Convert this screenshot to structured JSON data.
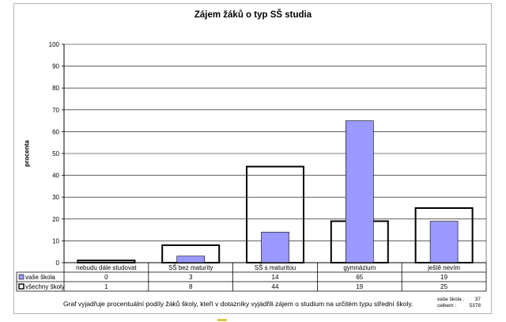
{
  "chart_data": {
    "type": "bar",
    "title": "Zájem žáků o typ SŠ studia",
    "ylabel": "procenta",
    "ylim": [
      0,
      100
    ],
    "yticks": [
      0,
      10,
      20,
      30,
      40,
      50,
      60,
      70,
      80,
      90,
      100
    ],
    "grid": true,
    "categories": [
      "nebudu dále studovat",
      "SŠ bez maturity",
      "SŠ s maturitou",
      "gymnázium",
      "ještě nevím"
    ],
    "series": [
      {
        "name": "vaše škola",
        "values": [
          0,
          3,
          14,
          65,
          19
        ],
        "color": "#9999ff",
        "style": "filled"
      },
      {
        "name": "všechny školy",
        "values": [
          1,
          8,
          44,
          19,
          25
        ],
        "color": "#000000",
        "style": "outline"
      }
    ]
  },
  "note": "Graf vyjadřuje procentuální podíly žáků školy, kteří v dotazníky vyjádřili zájem o studium na určitém typu střední školy.",
  "counts": {
    "school_label": "vaše škola :",
    "school_value": "37",
    "total_label": "celkem :",
    "total_value": "5378"
  }
}
